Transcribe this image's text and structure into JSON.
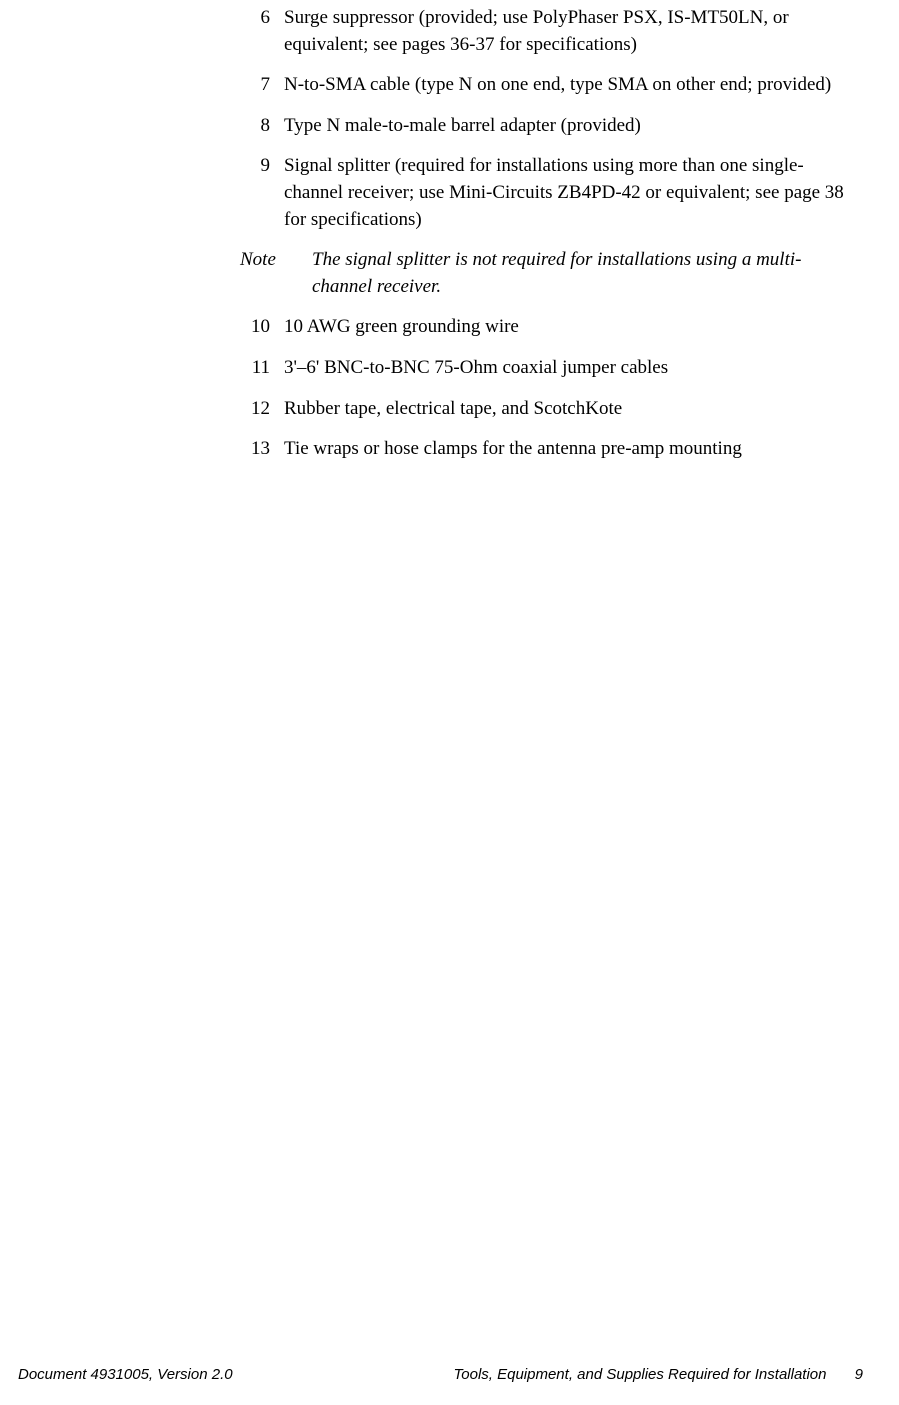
{
  "items": [
    {
      "num": "6",
      "text": "Surge suppressor (provided; use PolyPhaser PSX, IS-MT50LN, or equivalent; see pages 36-37 for specifications)"
    },
    {
      "num": "7",
      "text": "N-to-SMA cable (type N on one end, type SMA on other end; provided)"
    },
    {
      "num": "8",
      "text": "Type N male-to-male barrel adapter (provided)"
    },
    {
      "num": "9",
      "text": "Signal splitter (required for installations using more than one single-channel receiver; use Mini-Circuits ZB4PD-42 or equivalent; see page 38 for specifications)"
    }
  ],
  "note": {
    "label": "Note",
    "text": "The signal splitter is not required for installations using a multi-channel receiver."
  },
  "items2": [
    {
      "num": "10",
      "text": "10 AWG green grounding wire"
    },
    {
      "num": "11",
      "text": "3'–6' BNC-to-BNC 75-Ohm coaxial jumper cables"
    },
    {
      "num": "12",
      "text": "Rubber tape, electrical tape, and ScotchKote"
    },
    {
      "num": "13",
      "text": "Tie wraps or hose clamps for the antenna pre-amp mounting"
    }
  ],
  "footer": {
    "left": "Document 4931005, Version 2.0",
    "right": "Tools, Equipment, and Supplies Required for Installation",
    "pagenum": "9"
  }
}
